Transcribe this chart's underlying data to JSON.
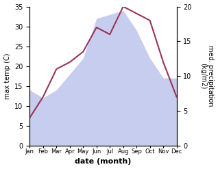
{
  "months": [
    "Jan",
    "Feb",
    "Mar",
    "Apr",
    "May",
    "Jun",
    "Jul",
    "Aug",
    "Sep",
    "Oct",
    "Nov",
    "Dec"
  ],
  "max_temp": [
    14,
    12,
    14,
    18,
    22,
    32,
    33,
    34,
    29,
    22,
    17,
    17
  ],
  "precipitation": [
    4.0,
    7.0,
    11.0,
    12.0,
    13.5,
    17.0,
    16.0,
    20.0,
    19.0,
    18.0,
    12.0,
    7.0
  ],
  "temp_color": "#b0b8e8",
  "precip_color": "#993355",
  "temp_ylim": [
    0,
    35
  ],
  "precip_ylim": [
    0,
    20
  ],
  "temp_yticks": [
    0,
    5,
    10,
    15,
    20,
    25,
    30,
    35
  ],
  "precip_yticks": [
    0,
    5,
    10,
    15,
    20
  ],
  "xlabel": "date (month)",
  "ylabel_left": "max temp (C)",
  "ylabel_right": "med. precipitation\n(kg/m2)",
  "bg_color": "#ffffff"
}
